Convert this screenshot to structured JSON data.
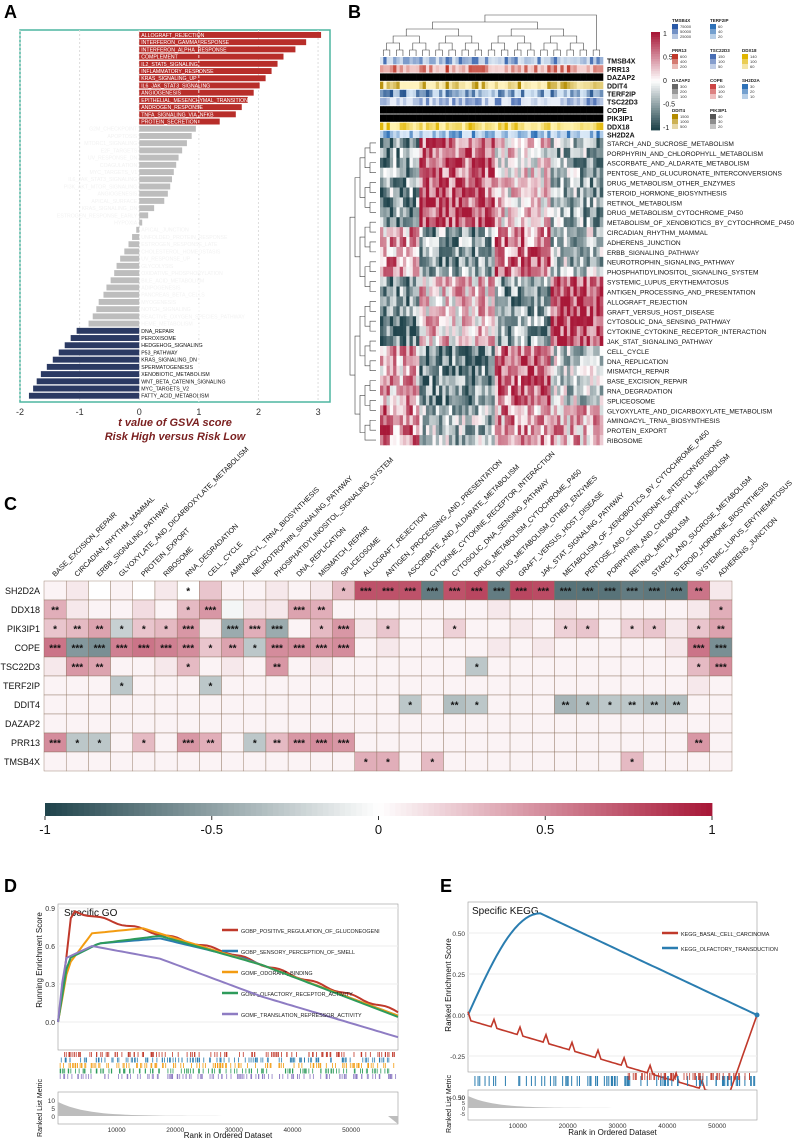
{
  "chart_data": [
    {
      "panel": "A",
      "type": "bar",
      "orientation": "horizontal",
      "xlabel": "t value of GSVA score",
      "subtitle": "Risk High versus Risk Low",
      "xlim": [
        -2,
        3.2
      ],
      "xticks": [
        -2,
        -1,
        0,
        1,
        2,
        3
      ],
      "grid": true,
      "categories": [
        "ALLOGRAFT_REJECTION",
        "INTERFERON_GAMMA_RESPONSE",
        "INTERFERON_ALPHA_RESPONSE",
        "COMPLEMENT",
        "IL2_STAT5_SIGNALING",
        "INFLAMMATORY_RESPONSE",
        "KRAS_SIGNALING_UP",
        "IL6_JAK_STAT3_SIGNALING",
        "ANGIOGENESIS",
        "EPITHELIAL_MESENCHYMAL_TRANSITION",
        "ANDROGEN_RESPONSE",
        "TNFA_SIGNALING_VIA_NFKB",
        "PROTEIN_SECRETION",
        "G2M_CHECKPOINT",
        "APOPTOSIS",
        "MTORC1_SIGNALING",
        "E2F_TARGETS",
        "UV_RESPONSE_DN",
        "COAGULATION",
        "MYC_TARGETS_V1",
        "IL6_JAK_STAT3_SIGNALING",
        "PI3K_AKT_MTOR_SIGNALING",
        "ANGIOGENESIS",
        "APICAL_SURFACE",
        "KRAS_SIGNALING_DN",
        "ESTROGEN_RESPONSE_EARLY",
        "HYPOXIA",
        "APICAL_JUNCTION",
        "UNFOLDED_PROTEIN_RESPONSE",
        "ESTROGEN_RESPONSE_LATE",
        "CHOLESTEROL_HOMEOSTASIS",
        "UV_RESPONSE_UP",
        "GLYCOLYSIS",
        "OXIDATIVE_PHOSPHORYLATION",
        "BILE_ACID_METABOLISM",
        "ADIPOGENESIS",
        "PANCREAS_BETA_CELLS",
        "MYOGENESIS",
        "NOTCH_SIGNALING",
        "REACTIVE_OXYGEN_SPECIES_PATHWAY",
        "HEME_METABOLISM",
        "DNA_REPAIR",
        "PEROXISOME",
        "HEDGEHOG_SIGNALING",
        "P53_PATHWAY",
        "KRAS_SIGNALING_DN",
        "SPERMATOGENESIS",
        "XENOBIOTIC_METABOLISM",
        "WNT_BETA_CATENIN_SIGNALING",
        "MYC_TARGETS_V2",
        "FATTY_ACID_METABOLISM"
      ],
      "values": [
        3.05,
        2.8,
        2.62,
        2.42,
        2.32,
        2.22,
        2.12,
        2.02,
        1.92,
        1.82,
        1.72,
        1.62,
        1.35,
        0.95,
        0.88,
        0.8,
        0.72,
        0.66,
        0.62,
        0.58,
        0.55,
        0.52,
        0.48,
        0.42,
        0.25,
        0.15,
        0.05,
        -0.05,
        -0.12,
        -0.18,
        -0.25,
        -0.32,
        -0.38,
        -0.42,
        -0.48,
        -0.55,
        -0.6,
        -0.68,
        -0.72,
        -0.78,
        -0.85,
        -1.05,
        -1.15,
        -1.25,
        -1.35,
        -1.45,
        -1.55,
        -1.65,
        -1.72,
        -1.78,
        -1.85
      ],
      "colors": {
        "up": "#b82e2a",
        "ns": "#bdbdbd",
        "down": "#2b3a63"
      }
    },
    {
      "panel": "B",
      "type": "heatmap",
      "annotation_rows": [
        "TMSB4X",
        "PRR13",
        "DAZAP2",
        "DDIT4",
        "TERF2IP",
        "TSC22D3",
        "COPE",
        "PIK3IP1",
        "DDX18",
        "SH2D2A"
      ],
      "rows": [
        "STARCH_AND_SUCROSE_METABOLISM",
        "PORPHYRIN_AND_CHLOROPHYLL_METABOLISM",
        "ASCORBATE_AND_ALDARATE_METABOLISM",
        "PENTOSE_AND_GLUCURONATE_INTERCONVERSIONS",
        "DRUG_METABOLISM_OTHER_ENZYMES",
        "STEROID_HORMONE_BIOSYNTHESIS",
        "RETINOL_METABOLISM",
        "DRUG_METABOLISM_CYTOCHROME_P450",
        "METABOLISM_OF_XENOBIOTICS_BY_CYTOCHROME_P450",
        "CIRCADIAN_RHYTHM_MAMMAL",
        "ADHERENS_JUNCTION",
        "ERBB_SIGNALING_PATHWAY",
        "NEUROTROPHIN_SIGNALING_PATHWAY",
        "PHOSPHATIDYLINOSITOL_SIGNALING_SYSTEM",
        "SYSTEMIC_LUPUS_ERYTHEMATOSUS",
        "ANTIGEN_PROCESSING_AND_PRESENTATION",
        "ALLOGRAFT_REJECTION",
        "GRAFT_VERSUS_HOST_DISEASE",
        "CYTOSOLIC_DNA_SENSING_PATHWAY",
        "CYTOKINE_CYTOKINE_RECEPTOR_INTERACTION",
        "JAK_STAT_SIGNALING_PATHWAY",
        "CELL_CYCLE",
        "DNA_REPLICATION",
        "MISMATCH_REPAIR",
        "BASE_EXCISION_REPAIR",
        "RNA_DEGRADATION",
        "SPLICEOSOME",
        "GLYOXYLATE_AND_DICARBOXYLATE_METABOLISM",
        "AMINOACYL_TRNA_BIOSYNTHESIS",
        "PROTEIN_EXPORT",
        "RIBOSOME"
      ],
      "colorbar_ticks": [
        "1",
        "0.5",
        "0",
        "-0.5",
        "-1"
      ],
      "legend_items": [
        {
          "name": "TMSB4X",
          "ticks": [
            "75000",
            "50000",
            "25000"
          ]
        },
        {
          "name": "TERF2IP",
          "ticks": [
            "60",
            "40",
            "20"
          ]
        },
        {
          "name": "PRR13",
          "ticks": [
            "600",
            "400",
            "200"
          ]
        },
        {
          "name": "TSC22D3",
          "ticks": [
            "150",
            "100",
            "50"
          ]
        },
        {
          "name": "DDX18",
          "ticks": [
            "140",
            "100",
            "60"
          ]
        },
        {
          "name": "DAZAP2",
          "ticks": [
            "300",
            "200",
            "100"
          ]
        },
        {
          "name": "COPE",
          "ticks": [
            "150",
            "100",
            "50"
          ]
        },
        {
          "name": "SH2D2A",
          "ticks": [
            "30",
            "20",
            "10"
          ]
        },
        {
          "name": "DDIT4",
          "ticks": [
            "1500",
            "1000",
            "500"
          ]
        },
        {
          "name": "PIK3IP1",
          "ticks": [
            "40",
            "30",
            "20"
          ]
        }
      ]
    },
    {
      "panel": "C",
      "type": "heatmap",
      "columns": [
        "BASE_EXCISION_REPAIR",
        "CIRCADIAN_RHYTHM_MAMMAL",
        "ERBB_SIGNALING_PATHWAY",
        "GLYOXYLATE_AND_DICARBOXYLATE_METABOLISM",
        "PROTEIN_EXPORT",
        "RIBOSOME",
        "RNA_DEGRADATION",
        "CELL_CYCLE",
        "AMINOACYL_TRNA_BIOSYNTHESIS",
        "NEUROTROPHIN_SIGNALING_PATHWAY",
        "PHOSPHATIDYLINOSITOL_SIGNALING_SYSTEM",
        "DNA_REPLICATION",
        "MISMATCH_REPAIR",
        "SPLICEOSOME",
        "ALLOGRAFT_REJECTION",
        "ANTIGEN_PROCESSING_AND_PRESENTATION",
        "ASCORBATE_AND_ALDARATE_METABOLISM",
        "CYTOKINE_CYTOKINE_RECEPTOR_INTERACTION",
        "CYTOSOLIC_DNA_SENSING_PATHWAY",
        "DRUG_METABOLISM_CYTOCHROME_P450",
        "DRUG_METABOLISM_OTHER_ENZYMES",
        "GRAFT_VERSUS_HOST_DISEASE",
        "JAK_STAT_SIGNALING_PATHWAY",
        "METABOLISM_OF_XENOBIOTICS_BY_CYTOCHROME_P450",
        "PENTOSE_AND_GLUCURONATE_INTERCONVERSIONS",
        "PORPHYRIN_AND_CHLOROPHYLL_METABOLISM",
        "RETINOL_METABOLISM",
        "STARCH_AND_SUCROSE_METABOLISM",
        "STEROID_HORMONE_BIOSYNTHESIS",
        "SYSTEMIC_LUPUS_ERYTHEMATOSUS",
        "ADHERENS_JUNCTION"
      ],
      "rows": [
        "SH2D2A",
        "DDX18",
        "PIK3IP1",
        "COPE",
        "TSC22D3",
        "TERF2IP",
        "DDIT4",
        "DAZAP2",
        "PRR13",
        "TMSB4X"
      ],
      "values": [
        [
          0.05,
          0.1,
          0,
          0.05,
          0,
          0.1,
          0,
          0.25,
          0.05,
          0.05,
          0.1,
          0.05,
          0.1,
          0.3,
          0.75,
          0.75,
          0.75,
          -0.7,
          0.75,
          0.8,
          -0.7,
          0.8,
          0.78,
          -0.75,
          -0.75,
          -0.75,
          -0.7,
          -0.72,
          -0.72,
          0.6,
          0.1
        ],
        [
          0.35,
          0.1,
          0.05,
          0.05,
          0.15,
          0.05,
          0.3,
          0.45,
          -0.05,
          0.1,
          0.1,
          0.4,
          0.35,
          0.05,
          0.05,
          0.05,
          0.05,
          0.05,
          0.05,
          0.05,
          0.1,
          0.05,
          0.05,
          0.1,
          0.05,
          0.05,
          0.05,
          0.05,
          0.05,
          0.1,
          0.35
        ],
        [
          0.25,
          0.3,
          0.4,
          -0.25,
          0.25,
          0.3,
          0.45,
          0.1,
          -0.45,
          0.35,
          -0.45,
          0.05,
          0.3,
          0.45,
          0.1,
          0.25,
          0.05,
          0.05,
          0.2,
          0.05,
          0.05,
          0.1,
          0.05,
          0.2,
          0.25,
          0.05,
          0.2,
          0.25,
          0.1,
          0.25,
          0.4
        ],
        [
          0.6,
          -0.55,
          -0.6,
          0.55,
          0.6,
          0.55,
          0.5,
          0.25,
          0.4,
          -0.3,
          0.5,
          0.5,
          0.45,
          0.5,
          0.05,
          0.1,
          0.05,
          0.05,
          0.05,
          0.05,
          0.1,
          0.05,
          0.1,
          0.05,
          0.05,
          0.05,
          0.05,
          0.05,
          0.1,
          0.6,
          -0.6
        ],
        [
          0.1,
          0.45,
          0.4,
          0.05,
          0.05,
          0.1,
          0.3,
          0.05,
          0.1,
          0.05,
          0.45,
          0.05,
          0.1,
          0.05,
          0.05,
          0.05,
          0.05,
          0.05,
          0.05,
          -0.3,
          0.05,
          0.05,
          0.05,
          0.05,
          0.05,
          0.05,
          0.05,
          0.05,
          0.05,
          0.3,
          0.5
        ],
        [
          0.05,
          0.05,
          0.05,
          -0.3,
          0.05,
          0.05,
          0.05,
          -0.3,
          0.05,
          0.05,
          0.05,
          0.05,
          0.05,
          0.05,
          0.05,
          0.05,
          0.05,
          0.05,
          0.05,
          0.05,
          0.05,
          0.05,
          0.05,
          0.05,
          0.05,
          0.05,
          0.05,
          0.05,
          0.05,
          0.1,
          0.05
        ],
        [
          0.05,
          0.05,
          0.05,
          0.05,
          0.05,
          0.05,
          0.05,
          0.05,
          0.05,
          0.05,
          0.05,
          0.05,
          0.05,
          0.05,
          0.05,
          0.05,
          -0.3,
          0.05,
          -0.35,
          -0.3,
          0.05,
          0.05,
          0.05,
          -0.4,
          -0.35,
          -0.3,
          -0.3,
          -0.35,
          -0.35,
          0.05,
          0.05
        ],
        [
          0.05,
          0.05,
          0.05,
          0.05,
          0.05,
          0.05,
          0.05,
          0.05,
          0.05,
          0.05,
          0.05,
          0.05,
          0.05,
          0.05,
          0.05,
          0.05,
          0.05,
          0.05,
          0.05,
          0.05,
          0.05,
          0.05,
          0.05,
          0.05,
          0.05,
          0.05,
          0.05,
          0.05,
          0.05,
          0.05,
          0.05
        ],
        [
          0.5,
          -0.3,
          -0.3,
          0.05,
          0.3,
          0.05,
          0.45,
          0.35,
          0.05,
          -0.3,
          0.3,
          0.45,
          0.5,
          0.45,
          0.05,
          0.05,
          0.05,
          0.05,
          0.05,
          0.05,
          0.05,
          0.05,
          0.05,
          0.05,
          0.05,
          0.05,
          0.05,
          0.05,
          0.05,
          0.45,
          0.05
        ],
        [
          0.05,
          0.05,
          0.05,
          0.05,
          0.05,
          0.05,
          0.05,
          0.05,
          0.05,
          0.05,
          0.05,
          0.05,
          0.05,
          0.05,
          0.35,
          0.35,
          0.05,
          0.3,
          0.05,
          0.05,
          0.05,
          0.05,
          0.05,
          0.05,
          0.05,
          0.05,
          0.3,
          0.05,
          0.05,
          0.05,
          0.05
        ]
      ],
      "stars": [
        [
          "",
          "",
          "",
          "",
          "",
          "",
          "*",
          "",
          "",
          "",
          "",
          "",
          "",
          "*",
          "***",
          "***",
          "***",
          "***",
          "***",
          "***",
          "***",
          "***",
          "***",
          "***",
          "***",
          "***",
          "***",
          "***",
          "***",
          "**",
          ""
        ],
        [
          "**",
          "",
          "",
          "",
          "",
          "",
          "*",
          "***",
          "",
          "",
          "",
          "***",
          "**",
          "",
          "",
          "",
          "",
          "",
          "",
          "",
          "",
          "",
          "",
          "",
          "",
          "",
          "",
          "",
          "",
          "",
          "*"
        ],
        [
          "*",
          "**",
          "**",
          "*",
          "*",
          "*",
          "***",
          "",
          "***",
          "***",
          "***",
          "",
          "*",
          "***",
          "",
          "*",
          "",
          "",
          "*",
          "",
          "",
          "",
          "",
          "*",
          "*",
          "",
          "*",
          "*",
          "",
          "*",
          "**"
        ],
        [
          "***",
          "***",
          "***",
          "***",
          "***",
          "***",
          "***",
          "*",
          "**",
          "*",
          "***",
          "***",
          "***",
          "***",
          "",
          "",
          "",
          "",
          "",
          "",
          "",
          "",
          "",
          "",
          "",
          "",
          "",
          "",
          "",
          "***",
          "***"
        ],
        [
          "",
          "***",
          "**",
          "",
          "",
          "",
          "*",
          "",
          "",
          "",
          "**",
          "",
          "",
          "",
          "",
          "",
          "",
          "",
          "",
          "*",
          "",
          "",
          "",
          "",
          "",
          "",
          "",
          "",
          "",
          "*",
          "***"
        ],
        [
          "",
          "",
          "",
          "*",
          "",
          "",
          "",
          "*",
          "",
          "",
          "",
          "",
          "",
          "",
          "",
          "",
          "",
          "",
          "",
          "",
          "",
          "",
          "",
          "",
          "",
          "",
          "",
          "",
          "",
          "",
          ""
        ],
        [
          "",
          "",
          "",
          "",
          "",
          "",
          "",
          "",
          "",
          "",
          "",
          "",
          "",
          "",
          "",
          "",
          "*",
          "",
          "**",
          "*",
          "",
          "",
          "",
          "**",
          "*",
          "*",
          "**",
          "**",
          "**",
          "",
          ""
        ],
        [
          "",
          "",
          "",
          "",
          "",
          "",
          "",
          "",
          "",
          "",
          "",
          "",
          "",
          "",
          "",
          "",
          "",
          "",
          "",
          "",
          "",
          "",
          "",
          "",
          "",
          "",
          "",
          "",
          "",
          "",
          ""
        ],
        [
          "***",
          "*",
          "*",
          "",
          "*",
          "",
          "***",
          "**",
          "",
          "*",
          "**",
          "***",
          "***",
          "***",
          "",
          "",
          "",
          "",
          "",
          "",
          "",
          "",
          "",
          "",
          "",
          "",
          "",
          "",
          "",
          "**",
          ""
        ],
        [
          "",
          "",
          "",
          "",
          "",
          "",
          "",
          "",
          "",
          "",
          "",
          "",
          "",
          "",
          "*",
          "*",
          "",
          "*",
          "",
          "",
          "",
          "",
          "",
          "",
          "",
          "",
          "*",
          "",
          "",
          "",
          ""
        ]
      ],
      "colorbar_ticks": [
        "-1",
        "-0.5",
        "0",
        "0.5",
        "1"
      ]
    },
    {
      "panel": "D",
      "type": "line",
      "title": "Specific GO",
      "ylabel": "Running Enrichment Score",
      "ylabel2": "Ranked List Metric",
      "xlabel": "Rank in Ordered Dataset",
      "xticks": [
        "10000",
        "20000",
        "30000",
        "40000",
        "50000"
      ],
      "yticks": [
        "0.9",
        "0.6",
        "0.3",
        "0.0"
      ],
      "yticks2": [
        "10",
        "5",
        "0"
      ],
      "series": [
        {
          "name": "GOBP_POSITIVE_REGULATION_OF_GLUCONEOGENI",
          "color": "#c0392b"
        },
        {
          "name": "GOBP_SENSORY_PERCEPTION_OF_SMELL",
          "color": "#2a7db0"
        },
        {
          "name": "GOMF_ODORANT_BINDING",
          "color": "#f39c12"
        },
        {
          "name": "GOMF_OLFACTORY_RECEPTOR_ACTIVITY",
          "color": "#2e9b5b"
        },
        {
          "name": "GOMF_TRANSLATION_REPRESSOR_ACTIVITY",
          "color": "#8e7cc3"
        }
      ]
    },
    {
      "panel": "E",
      "type": "line",
      "title": "Specific KEGG",
      "ylabel": "Ranked Enrichment Score",
      "ylabel2": "Ranked List Metric",
      "xlabel": "Rank in Ordered Dataset",
      "xticks": [
        "10000",
        "20000",
        "30000",
        "40000",
        "50000"
      ],
      "yticks": [
        "0.50",
        "0.25",
        "0.00",
        "-0.25",
        "-0.50"
      ],
      "yticks2": [
        "10",
        "5",
        "0",
        "-5"
      ],
      "series": [
        {
          "name": "KEGG_BASAL_CELL_CARCINOMA",
          "color": "#c0392b"
        },
        {
          "name": "KEGG_OLFACTORY_TRANSDUCTION",
          "color": "#2a7db0"
        }
      ]
    }
  ],
  "panel_letters": {
    "a": "A",
    "b": "B",
    "c": "C",
    "d": "D",
    "e": "E"
  }
}
